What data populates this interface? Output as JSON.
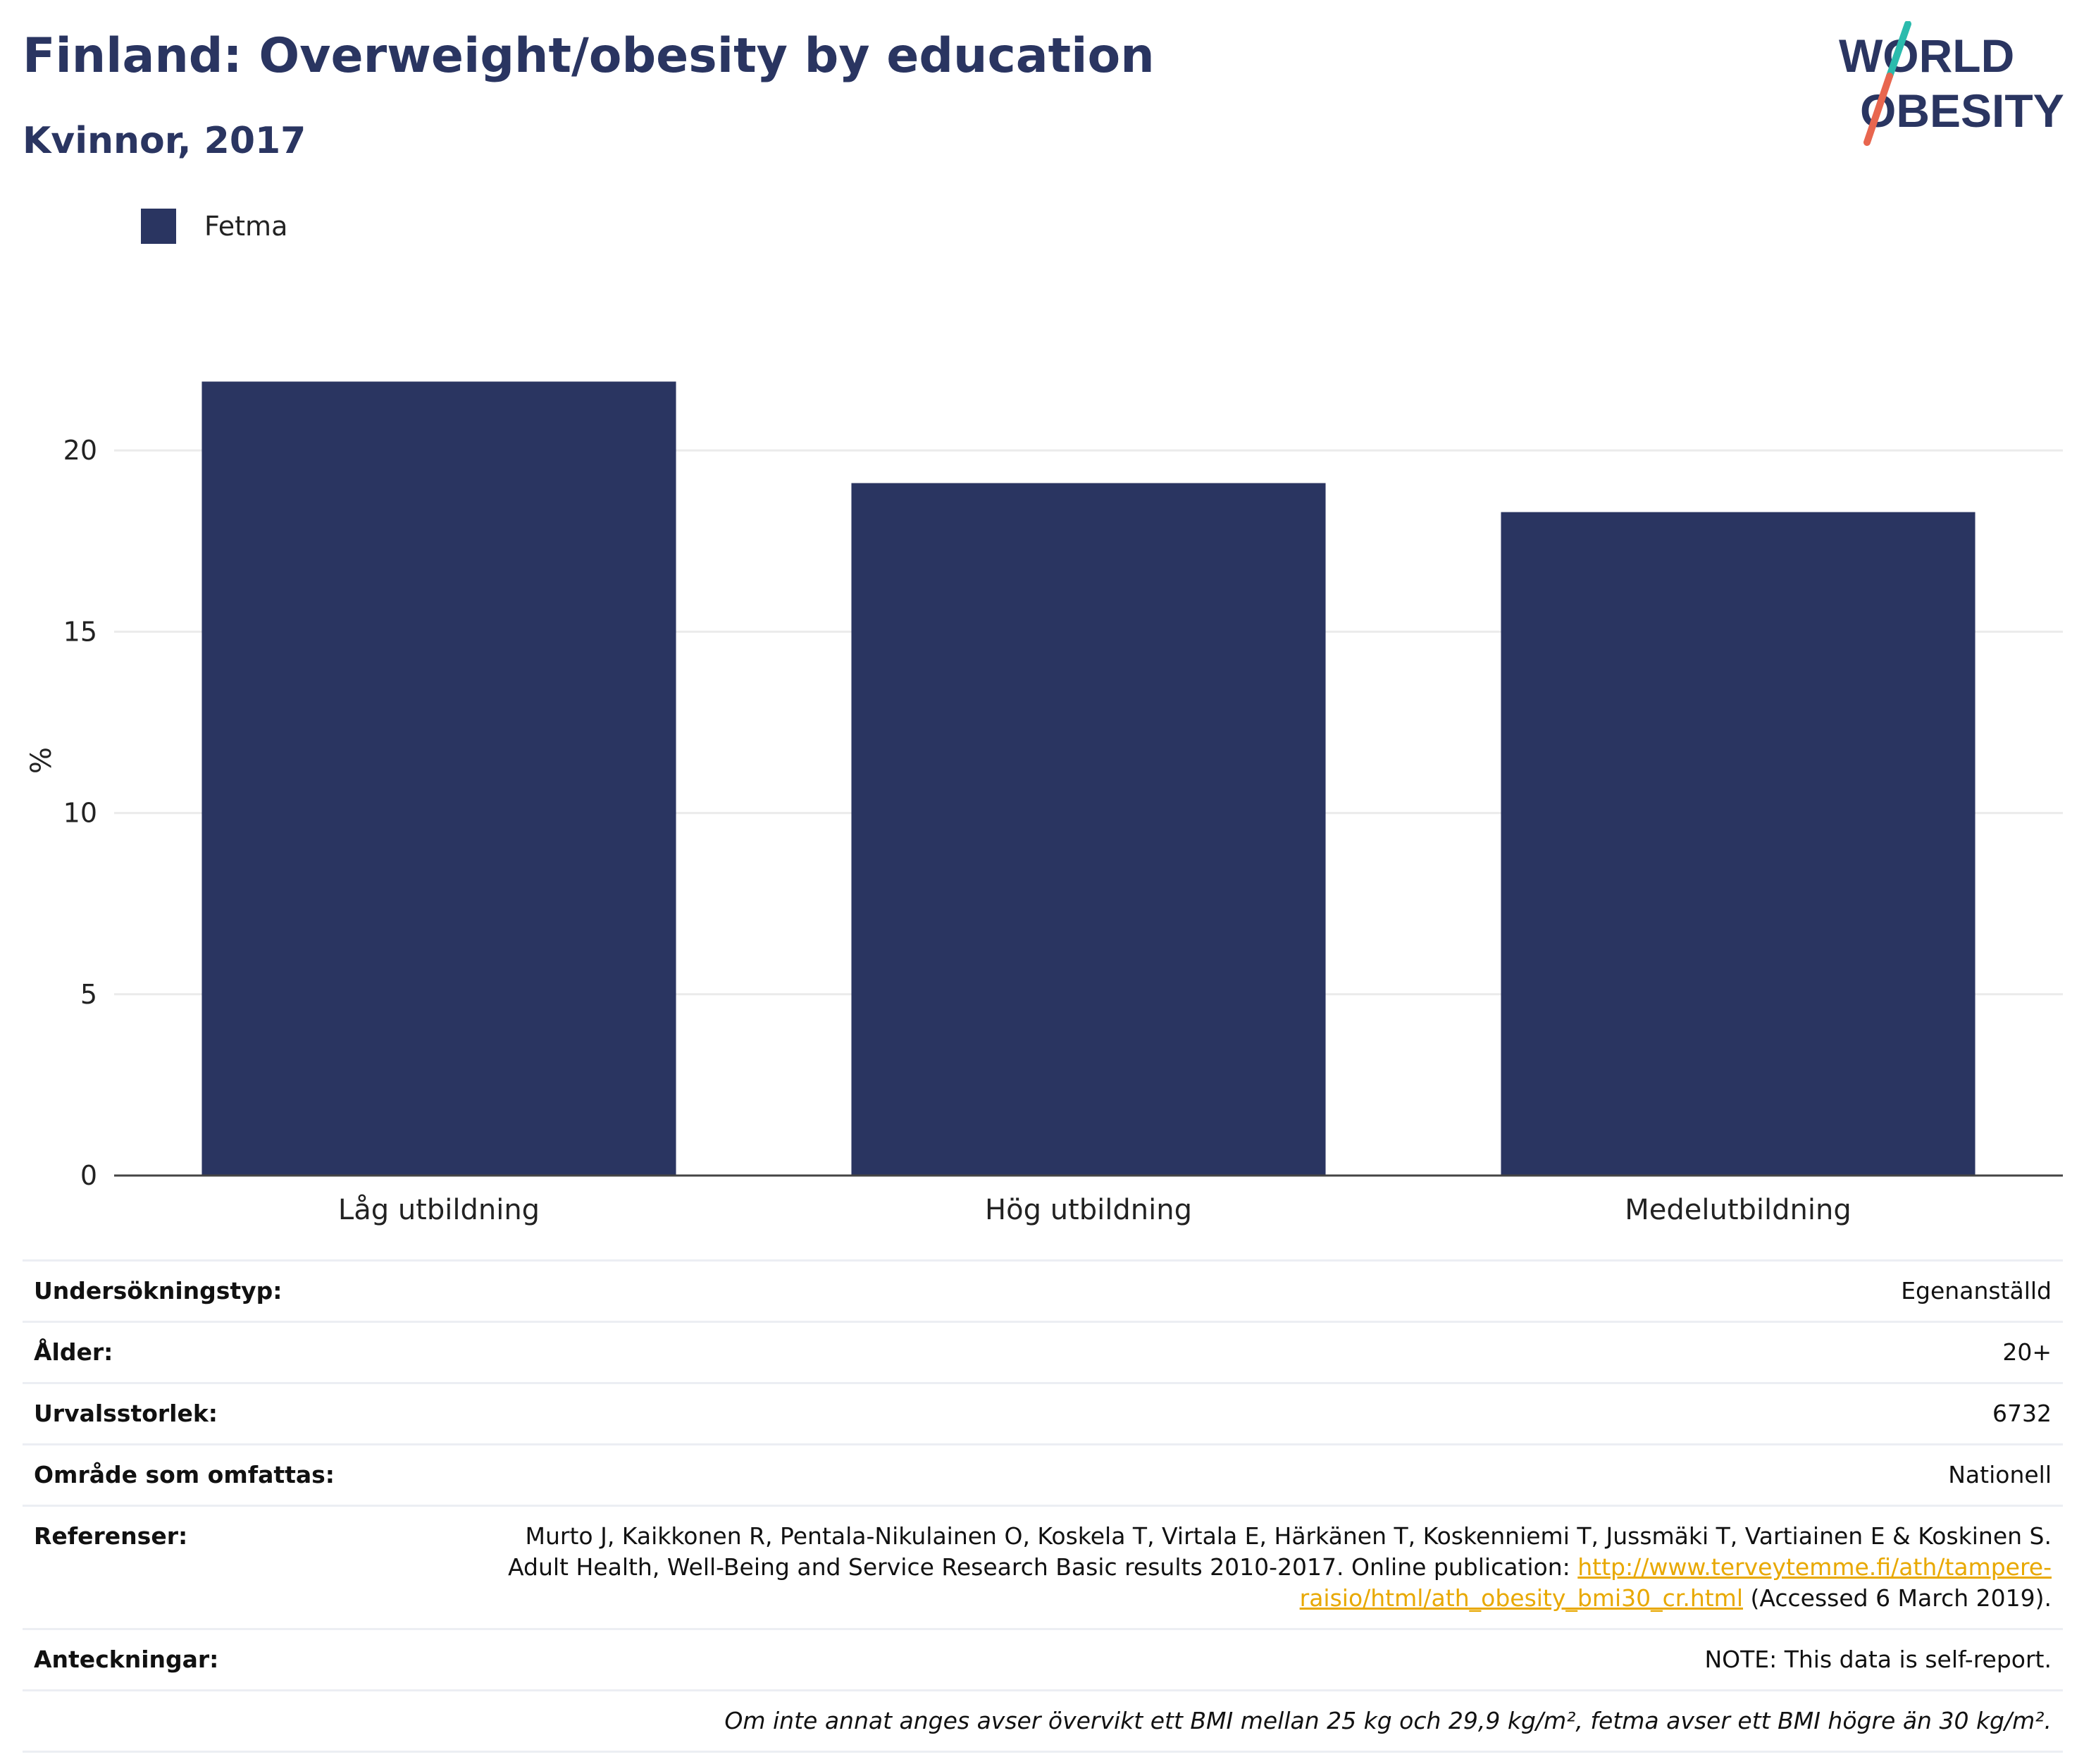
{
  "header": {
    "title": "Finland: Overweight/obesity by education",
    "subtitle": "Kvinnor, 2017"
  },
  "logo": {
    "line1": "WORLD",
    "line2": "OBESITY",
    "colors": {
      "text": "#2a3561",
      "slash_top": "#2bbbad",
      "slash_bottom": "#e8664f"
    }
  },
  "legend": {
    "items": [
      {
        "label": "Fetma",
        "color": "#2a3561"
      }
    ]
  },
  "chart_data": {
    "type": "bar",
    "categories": [
      "Låg utbildning",
      "Hög utbildning",
      "Medelutbildning"
    ],
    "series": [
      {
        "name": "Fetma",
        "values": [
          21.9,
          19.1,
          18.3
        ],
        "color": "#2a3561"
      }
    ],
    "ylabel": "%",
    "ylim": [
      0,
      22.9
    ],
    "yticks": [
      0,
      5,
      10,
      15,
      20
    ],
    "grid": true,
    "legend_position": "top-left"
  },
  "info": {
    "survey_type_label": "Undersökningstyp:",
    "survey_type": "Egenanställd",
    "age_label": "Ålder:",
    "age": "20+",
    "sample_size_label": "Urvalsstorlek:",
    "sample_size": "6732",
    "area_label": "Område som omfattas:",
    "area": "Nationell",
    "references_label": "Referenser:",
    "references_text": "Murto J, Kaikkonen R, Pentala-Nikulainen O, Koskela T, Virtala E, Härkänen T, Koskenniemi T, Jussmäki T, Vartiainen E & Koskinen S. Adult Health, Well-Being and Service Research Basic results 2010-2017. Online publication: ",
    "references_link": "http://www.terveytemme.fi/ath/tampere-raisio/html/ath_obesity_bmi30_cr.html",
    "references_accessed": " (Accessed 6 March 2019).",
    "notes_label": "Anteckningar:",
    "notes": "NOTE: This data is self-report.",
    "footnote": "Om inte annat anges avser övervikt ett BMI mellan 25 kg och 29,9 kg/m², fetma avser ett BMI högre än 30 kg/m²."
  }
}
